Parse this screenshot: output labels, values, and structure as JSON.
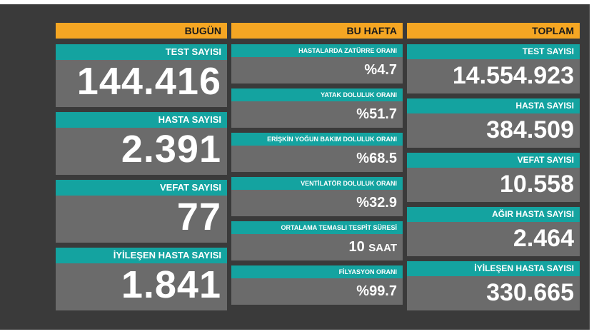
{
  "today": {
    "header": "BUGÜN",
    "items": [
      {
        "label": "TEST SAYISI",
        "value": "144.416"
      },
      {
        "label": "HASTA SAYISI",
        "value": "2.391"
      },
      {
        "label": "VEFAT SAYISI",
        "value": "77"
      },
      {
        "label": "İYİLEŞEN HASTA SAYISI",
        "value": "1.841"
      }
    ]
  },
  "week": {
    "header": "BU HAFTA",
    "items": [
      {
        "label": "HASTALARDA ZATÜRRE ORANI",
        "value": "%4.7"
      },
      {
        "label": "YATAK DOLULUK ORANI",
        "value": "%51.7"
      },
      {
        "label": "ERİŞKİN YOĞUN BAKIM DOLULUK ORANI",
        "value": "%68.5"
      },
      {
        "label": "VENTİLATÖR DOLULUK ORANI",
        "value": "%32.9"
      },
      {
        "label": "ORTALAMA TEMASLI TESPİT SÜRESİ",
        "value": "10",
        "unit": "SAAT"
      },
      {
        "label": "FİLYASYON ORANI",
        "value": "%99.7"
      }
    ]
  },
  "total": {
    "header": "TOPLAM",
    "items": [
      {
        "label": "TEST SAYISI",
        "value": "14.554.923"
      },
      {
        "label": "HASTA SAYISI",
        "value": "384.509"
      },
      {
        "label": "VEFAT SAYISI",
        "value": "10.558"
      },
      {
        "label": "AĞIR HASTA SAYISI",
        "value": "2.464"
      },
      {
        "label": "İYİLEŞEN HASTA SAYISI",
        "value": "330.665"
      }
    ]
  },
  "colors": {
    "header": "#f5a623",
    "label_bar": "#14a3a0",
    "card": "#6b6b6b",
    "background": "#3a3a3a"
  }
}
